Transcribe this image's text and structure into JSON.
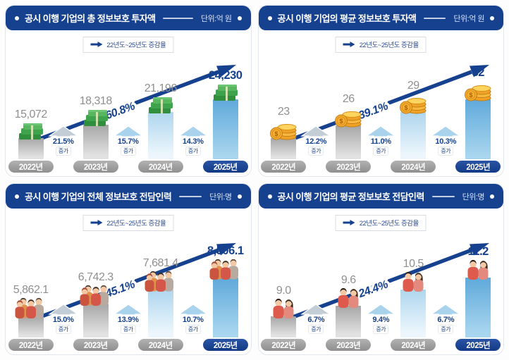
{
  "colors": {
    "navy": "#16418e",
    "value_gray": "#8f8f8f",
    "pill_gray": "#9a9a9a",
    "growth_arrow_first": "#c2cdd6",
    "growth_arrow": "#a9d3ec",
    "bar_past": "#a6a6a6",
    "bar_recent": "#aed6ee",
    "bar_current": "#5fa9da"
  },
  "chart_data": [
    {
      "type": "bar",
      "title": "공시 이행 기업의 총 정보보호 투자액",
      "unit": "단위:억 원",
      "legend": "22년도~25년도 증감율",
      "overall_growth": "60.8%",
      "icon": "money-stack",
      "categories": [
        "2022년",
        "2023년",
        "2024년",
        "2025년"
      ],
      "values": [
        15072,
        18318,
        21196,
        24230
      ],
      "value_labels": [
        "15,072",
        "18,318",
        "21,196",
        "24,230"
      ],
      "growth_labels": [
        "21.5%",
        "15.7%",
        "14.3%"
      ],
      "growth_suffix": "증가"
    },
    {
      "type": "bar",
      "title": "공시 이행 기업의 평균 정보보호 투자액",
      "unit": "단위:억 원",
      "legend": "22년도~25년도 증감율",
      "overall_growth": "39.1%",
      "icon": "coin-stack",
      "categories": [
        "2022년",
        "2023년",
        "2024년",
        "2025년"
      ],
      "values": [
        23,
        26,
        29,
        32
      ],
      "value_labels": [
        "23",
        "26",
        "29",
        "32"
      ],
      "growth_labels": [
        "12.2%",
        "11.0%",
        "10.3%"
      ],
      "growth_suffix": "증가"
    },
    {
      "type": "bar",
      "title": "공시 이행 기업의 전체 정보보호 전담인력",
      "unit": "단위:명",
      "legend": "22년도~25년도 증감율",
      "overall_growth": "45.1%",
      "icon": "people-group",
      "categories": [
        "2022년",
        "2023년",
        "2024년",
        "2025년"
      ],
      "values": [
        5862.1,
        6742.3,
        7681.4,
        8506.1
      ],
      "value_labels": [
        "5,862.1",
        "6,742.3",
        "7,681.4",
        "8,506.1"
      ],
      "growth_labels": [
        "15.0%",
        "13.9%",
        "10.7%"
      ],
      "growth_suffix": "증가"
    },
    {
      "type": "bar",
      "title": "공시 이행 기업의 평균 정보보호 전담인력",
      "unit": "단위:명",
      "legend": "22년도~25년도 증감율",
      "overall_growth": "24.4%",
      "icon": "couple",
      "categories": [
        "2022년",
        "2023년",
        "2024년",
        "2025년"
      ],
      "values": [
        9.0,
        9.6,
        10.5,
        11.2
      ],
      "value_labels": [
        "9.0",
        "9.6",
        "10.5",
        "11.2"
      ],
      "growth_labels": [
        "6.7%",
        "9.4%",
        "6.7%"
      ],
      "growth_suffix": "증가"
    }
  ]
}
